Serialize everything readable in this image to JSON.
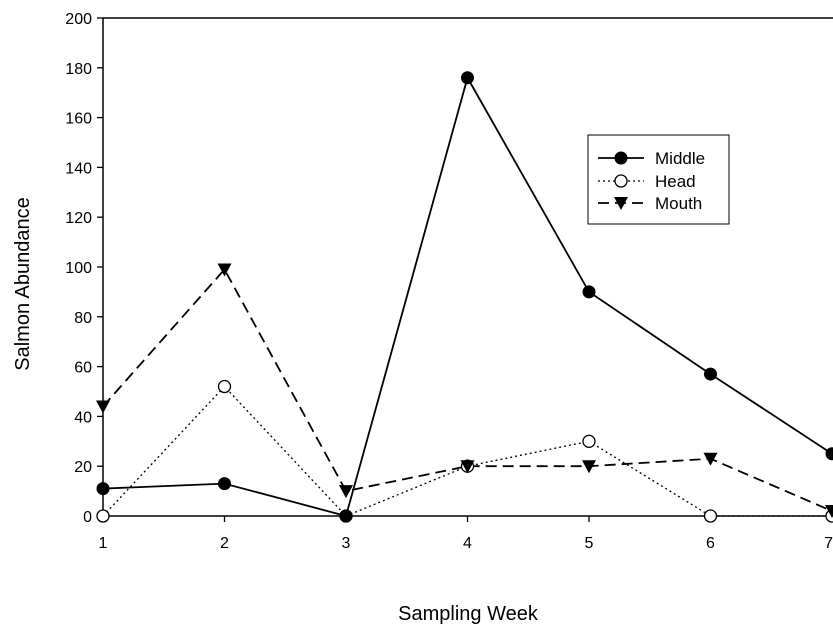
{
  "chart_data": {
    "type": "line",
    "xlabel": "Sampling Week",
    "ylabel": "Salmon Abundance",
    "x": [
      1,
      2,
      3,
      4,
      5,
      6,
      7
    ],
    "xticks": [
      "1",
      "2",
      "3",
      "4",
      "5",
      "6",
      "7"
    ],
    "yticks": [
      "0",
      "20",
      "40",
      "60",
      "80",
      "100",
      "120",
      "140",
      "160",
      "180",
      "200"
    ],
    "xlim": [
      1,
      7
    ],
    "ylim": [
      0,
      200
    ],
    "grid": false,
    "legend_position": "top-right",
    "series": [
      {
        "name": "Middle",
        "values": [
          11,
          13,
          0,
          176,
          90,
          57,
          25
        ],
        "marker": "filled-circle",
        "line": "solid",
        "color": "#000000"
      },
      {
        "name": "Head",
        "values": [
          0,
          52,
          0,
          20,
          30,
          0,
          0
        ],
        "marker": "open-circle",
        "line": "dotted",
        "color": "#000000"
      },
      {
        "name": "Mouth",
        "values": [
          44,
          99,
          10,
          20,
          20,
          23,
          2
        ],
        "marker": "filled-triangle-down",
        "line": "dashed",
        "color": "#000000"
      }
    ]
  }
}
